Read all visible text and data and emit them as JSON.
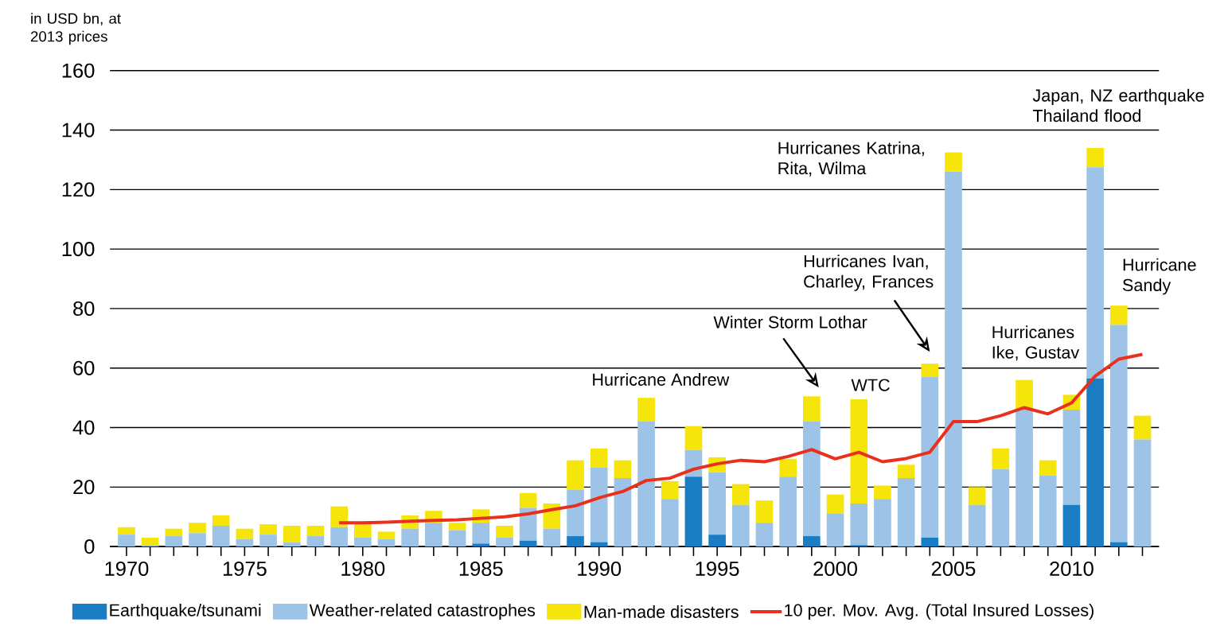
{
  "chart_data": {
    "type": "bar",
    "stacked": true,
    "ylabel": "in USD bn, at 2013 prices",
    "x": [
      1970,
      1971,
      1972,
      1973,
      1974,
      1975,
      1976,
      1977,
      1978,
      1979,
      1980,
      1981,
      1982,
      1983,
      1984,
      1985,
      1986,
      1987,
      1988,
      1989,
      1990,
      1991,
      1992,
      1993,
      1994,
      1995,
      1996,
      1997,
      1998,
      1999,
      2000,
      2001,
      2002,
      2003,
      2004,
      2005,
      2006,
      2007,
      2008,
      2009,
      2010,
      2011,
      2012,
      2013
    ],
    "xlim": [
      1969.3,
      2013.7
    ],
    "xticks": [
      1970,
      {
        "value": 1971,
        "label": null
      },
      {
        "value": 1972,
        "label": null
      },
      {
        "value": 1973,
        "label": null
      },
      {
        "value": 1974,
        "label": null
      },
      1975,
      {
        "value": 1976,
        "label": null
      },
      {
        "value": 1977,
        "label": null
      },
      {
        "value": 1978,
        "label": null
      },
      {
        "value": 1979,
        "label": null
      },
      1980,
      {
        "value": 1981,
        "label": null
      },
      {
        "value": 1982,
        "label": null
      },
      {
        "value": 1983,
        "label": null
      },
      {
        "value": 1984,
        "label": null
      },
      1985,
      {
        "value": 1986,
        "label": null
      },
      {
        "value": 1987,
        "label": null
      },
      {
        "value": 1988,
        "label": null
      },
      {
        "value": 1989,
        "label": null
      },
      1990,
      {
        "value": 1991,
        "label": null
      },
      {
        "value": 1992,
        "label": null
      },
      {
        "value": 1993,
        "label": null
      },
      {
        "value": 1994,
        "label": null
      },
      1995,
      {
        "value": 1996,
        "label": null
      },
      {
        "value": 1997,
        "label": null
      },
      {
        "value": 1998,
        "label": null
      },
      {
        "value": 1999,
        "label": null
      },
      2000,
      {
        "value": 2001,
        "label": null
      },
      {
        "value": 2002,
        "label": null
      },
      {
        "value": 2003,
        "label": null
      },
      {
        "value": 2004,
        "label": null
      },
      2005,
      {
        "value": 2006,
        "label": null
      },
      {
        "value": 2007,
        "label": null
      },
      {
        "value": 2008,
        "label": null
      },
      {
        "value": 2009,
        "label": null
      },
      2010,
      {
        "value": 2011,
        "label": null
      },
      {
        "value": 2012,
        "label": null
      },
      {
        "value": 2013,
        "label": null
      }
    ],
    "ylim": [
      0,
      160
    ],
    "yticks": [
      0,
      20,
      40,
      60,
      80,
      100,
      120,
      140,
      160
    ],
    "grid": "y",
    "legend": "bottom",
    "series": [
      {
        "name": "Earthquake/tsunami",
        "color": "#1a7dc4",
        "values": [
          0,
          0,
          0,
          0,
          0,
          0,
          0,
          0,
          0,
          0,
          0,
          0,
          0,
          0,
          0,
          1,
          0,
          2,
          0,
          3.5,
          1.5,
          0,
          0,
          0,
          23.5,
          4,
          0,
          0,
          0,
          3.5,
          0,
          0.5,
          0,
          0,
          3,
          0,
          0,
          0,
          0,
          0,
          14,
          56.5,
          1.5,
          0
        ]
      },
      {
        "name": "Weather-related catastrophes",
        "color": "#9dc3e6",
        "values": [
          4,
          0.5,
          3.5,
          4.5,
          7,
          2.5,
          4,
          1.5,
          3.5,
          6.5,
          3,
          2.5,
          6,
          8,
          5.5,
          7,
          3,
          11,
          6,
          15.5,
          25,
          23,
          42,
          16,
          9,
          21,
          14,
          8,
          23.5,
          38.5,
          11,
          14,
          16,
          23,
          54,
          126,
          14,
          26,
          46.5,
          24,
          32,
          71,
          73,
          36
        ]
      },
      {
        "name": "Man-made disasters",
        "color": "#f5e50a",
        "values": [
          2.5,
          2.5,
          2.5,
          3.5,
          3.5,
          3.5,
          3.5,
          5.5,
          3.5,
          7,
          5,
          2.5,
          4.5,
          4,
          2.5,
          4.5,
          4,
          5,
          8.5,
          10,
          6.5,
          6,
          8,
          6,
          8,
          5,
          7,
          7.5,
          6,
          8.5,
          6.5,
          35,
          4.5,
          4.5,
          4.5,
          6.5,
          6,
          7,
          9.5,
          5,
          5,
          6.5,
          6.5,
          8
        ]
      },
      {
        "name": "10 per. Mov. Avg. (Total Insured Losses)",
        "type": "line",
        "color": "#e8301c",
        "x": [
          1979,
          1980,
          1981,
          1982,
          1983,
          1984,
          1985,
          1986,
          1987,
          1988,
          1989,
          1990,
          1991,
          1992,
          1993,
          1994,
          1995,
          1996,
          1997,
          1998,
          1999,
          2000,
          2001,
          2002,
          2003,
          2004,
          2005,
          2006,
          2007,
          2008,
          2009,
          2010,
          2011,
          2012,
          2013
        ],
        "values": [
          8,
          8,
          8.2,
          8.5,
          8.8,
          9,
          9.5,
          10,
          11,
          12.4,
          13.7,
          16.4,
          18.5,
          22.2,
          23,
          26,
          27.8,
          29,
          28.5,
          30.3,
          32.6,
          29.5,
          31.7,
          28.5,
          29.6,
          31.7,
          42,
          42,
          44,
          46.7,
          44.6,
          48.3,
          57.3,
          63,
          64.6
        ]
      }
    ],
    "annotations": [
      {
        "text": "Hurricane Andrew",
        "x": 1992,
        "y": 50.2
      },
      "Winter Storm Lothar",
      {
        "text": "WTC",
        "x": 2001,
        "y": 49.3
      },
      "Hurricanes Ivan, Charley, Frances",
      {
        "text": "Hurricanes Katrina, Rita, Wilma",
        "x": 2005,
        "y": 132.5
      },
      {
        "text": "Hurricanes Ike, Gustav",
        "x": 2008,
        "y": 56
      },
      {
        "text": "Japan, NZ earthquake Thailand flood",
        "x": 2011,
        "y": 134
      },
      {
        "text": "Hurricane Sandy",
        "x": 2012,
        "y": 81
      }
    ]
  }
}
